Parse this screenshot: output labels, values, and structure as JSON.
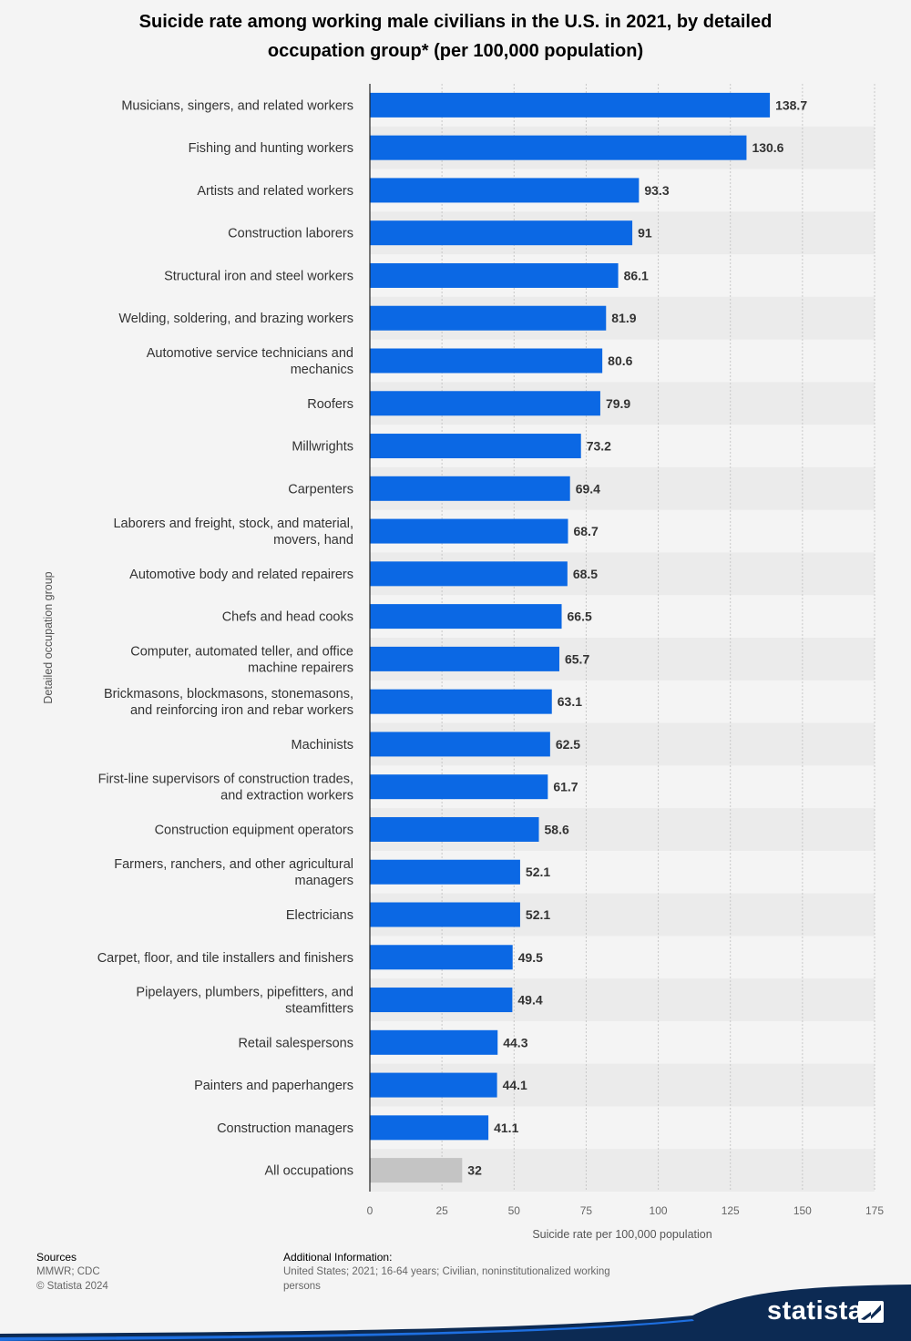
{
  "chart_data": {
    "type": "bar",
    "orientation": "horizontal",
    "title": "Suicide rate among working male civilians in the U.S. in 2021, by detailed occupation group* (per 100,000 population)",
    "title_lines": [
      "Suicide rate among working male civilians in the U.S. in 2021, by detailed",
      "occupation group* (per 100,000 population)"
    ],
    "xlabel": "Suicide rate per 100,000 population",
    "ylabel": "Detailed occupation group",
    "xlim": [
      0,
      175
    ],
    "xticks": [
      0,
      25,
      50,
      75,
      100,
      125,
      150,
      175
    ],
    "grid": true,
    "bar_color": "#0b68e4",
    "highlight_color": "#c4c4c4",
    "categories": [
      [
        "Musicians, singers, and related workers"
      ],
      [
        "Fishing and hunting workers"
      ],
      [
        "Artists and related workers"
      ],
      [
        "Construction laborers"
      ],
      [
        "Structural iron and steel workers"
      ],
      [
        "Welding, soldering, and brazing workers"
      ],
      [
        "Automotive service technicians and",
        "mechanics"
      ],
      [
        "Roofers"
      ],
      [
        "Millwrights"
      ],
      [
        "Carpenters"
      ],
      [
        "Laborers and freight, stock, and material,",
        "movers, hand"
      ],
      [
        "Automotive body and related repairers"
      ],
      [
        "Chefs and head cooks"
      ],
      [
        "Computer, automated teller, and office",
        "machine repairers"
      ],
      [
        "Brickmasons, blockmasons, stonemasons,",
        "and reinforcing iron and rebar workers"
      ],
      [
        "Machinists"
      ],
      [
        "First-line supervisors of construction trades,",
        "and extraction workers"
      ],
      [
        "Construction equipment operators"
      ],
      [
        "Farmers, ranchers, and other agricultural",
        "managers"
      ],
      [
        "Electricians"
      ],
      [
        "Carpet, floor, and tile installers and finishers"
      ],
      [
        "Pipelayers, plumbers, pipefitters, and",
        "steamfitters"
      ],
      [
        "Retail salespersons"
      ],
      [
        "Painters and paperhangers"
      ],
      [
        "Construction managers"
      ],
      [
        "All occupations"
      ]
    ],
    "values": [
      138.7,
      130.6,
      93.3,
      91,
      86.1,
      81.9,
      80.6,
      79.9,
      73.2,
      69.4,
      68.7,
      68.5,
      66.5,
      65.7,
      63.1,
      62.5,
      61.7,
      58.6,
      52.1,
      52.1,
      49.5,
      49.4,
      44.3,
      44.1,
      41.1,
      32
    ],
    "highlighted_index": 25
  },
  "footer": {
    "sources_label": "Sources",
    "sources_lines": [
      "MMWR; CDC",
      "© Statista 2024"
    ],
    "additional_label": "Additional Information:",
    "additional_lines": [
      "United States; 2021; 16-64 years; Civilian, noninstitutionalized working",
      "persons"
    ]
  },
  "brand": {
    "name": "statista"
  }
}
